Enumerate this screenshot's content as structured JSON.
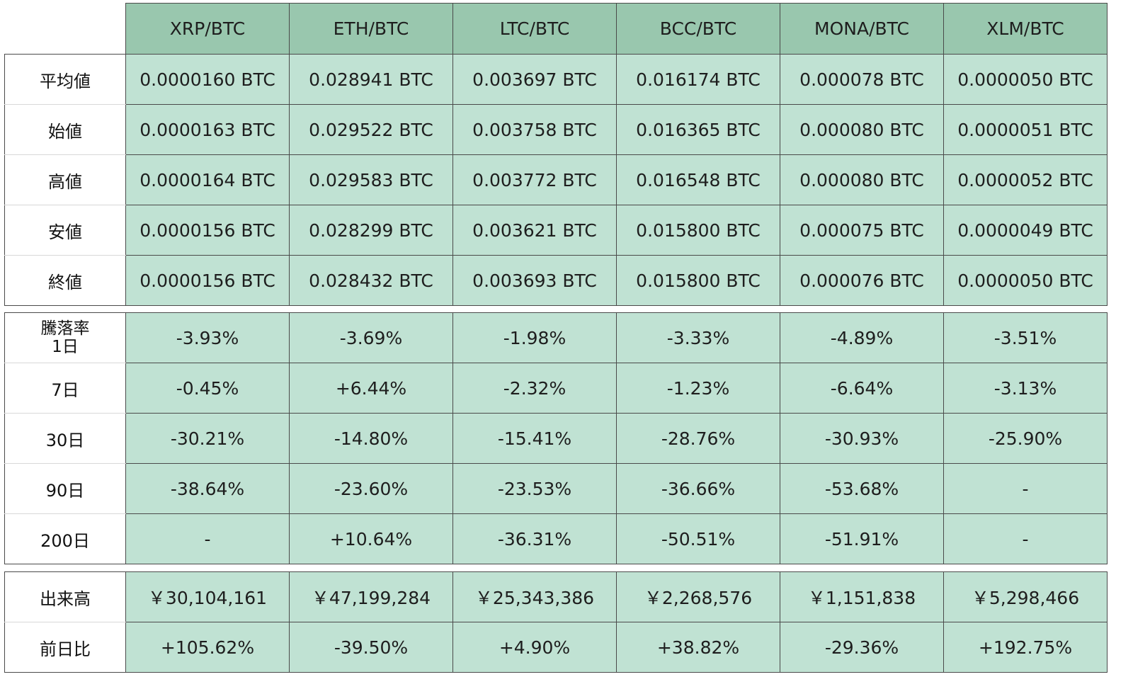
{
  "pairs": [
    "XRP/BTC",
    "ETH/BTC",
    "LTC/BTC",
    "BCC/BTC",
    "MONA/BTC",
    "XLM/BTC"
  ],
  "price_rows": [
    {
      "label": "平均値",
      "values": [
        "0.0000160 BTC",
        "0.028941 BTC",
        "0.003697 BTC",
        "0.016174 BTC",
        "0.000078 BTC",
        "0.0000050 BTC"
      ]
    },
    {
      "label": "始値",
      "values": [
        "0.0000163 BTC",
        "0.029522 BTC",
        "0.003758 BTC",
        "0.016365 BTC",
        "0.000080 BTC",
        "0.0000051 BTC"
      ]
    },
    {
      "label": "高値",
      "values": [
        "0.0000164 BTC",
        "0.029583 BTC",
        "0.003772 BTC",
        "0.016548 BTC",
        "0.000080 BTC",
        "0.0000052 BTC"
      ]
    },
    {
      "label": "安値",
      "values": [
        "0.0000156 BTC",
        "0.028299 BTC",
        "0.003621 BTC",
        "0.015800 BTC",
        "0.000075 BTC",
        "0.0000049 BTC"
      ]
    },
    {
      "label": "終値",
      "values": [
        "0.0000156 BTC",
        "0.028432 BTC",
        "0.003693 BTC",
        "0.015800 BTC",
        "0.000076 BTC",
        "0.0000050 BTC"
      ]
    }
  ],
  "change_header": {
    "line1": "騰落率",
    "line2": "1日"
  },
  "change_rows": [
    {
      "label": "1日",
      "values": [
        "-3.93%",
        "-3.69%",
        "-1.98%",
        "-3.33%",
        "-4.89%",
        "-3.51%"
      ]
    },
    {
      "label": "7日",
      "values": [
        "-0.45%",
        "+6.44%",
        "-2.32%",
        "-1.23%",
        "-6.64%",
        "-3.13%"
      ]
    },
    {
      "label": "30日",
      "values": [
        "-30.21%",
        "-14.80%",
        "-15.41%",
        "-28.76%",
        "-30.93%",
        "-25.90%"
      ]
    },
    {
      "label": "90日",
      "values": [
        "-38.64%",
        "-23.60%",
        "-23.53%",
        "-36.66%",
        "-53.68%",
        "-"
      ]
    },
    {
      "label": "200日",
      "values": [
        "-",
        "+10.64%",
        "-36.31%",
        "-50.51%",
        "-51.91%",
        "-"
      ]
    }
  ],
  "volume_rows": [
    {
      "label": "出来高",
      "values": [
        "￥30,104,161",
        "￥47,199,284",
        "￥25,343,386",
        "￥2,268,576",
        "￥1,151,838",
        "￥5,298,466"
      ]
    },
    {
      "label": "前日比",
      "values": [
        "+105.62%",
        "-39.50%",
        "+4.90%",
        "+38.82%",
        "-29.36%",
        "+192.75%"
      ]
    }
  ],
  "colors": {
    "header_bg": "#99c7ae",
    "cell_bg": "#c0e2d3",
    "label_bg": "#ffffff",
    "border": "#4a4a4a"
  }
}
